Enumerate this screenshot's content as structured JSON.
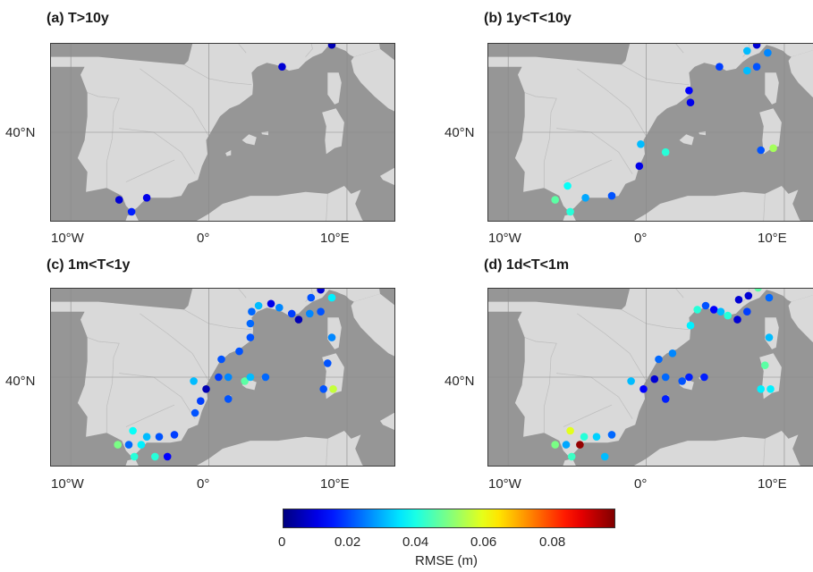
{
  "colorbar": {
    "label": "RMSE (m)",
    "ticks": [
      "0",
      "0.02",
      "0.04",
      "0.06",
      "0.08"
    ],
    "range": [
      0,
      0.097
    ],
    "colormap": "jet"
  },
  "chart_data": [
    {
      "type": "scatter",
      "map": "western-mediterranean",
      "title": "(a) T>10y",
      "x_tick_labels": [
        "10°W",
        "0°",
        "10°E"
      ],
      "y_tick_labels": [
        "40°N"
      ],
      "xlim": [
        -11.5,
        13.5
      ],
      "ylim": [
        35.5,
        44.5
      ],
      "points": [
        {
          "lon": -6.5,
          "lat": 36.6,
          "rmse": 0.008
        },
        {
          "lon": -5.6,
          "lat": 36.0,
          "rmse": 0.015
        },
        {
          "lon": -4.5,
          "lat": 36.7,
          "rmse": 0.01
        },
        {
          "lon": 5.3,
          "lat": 43.3,
          "rmse": 0.008
        },
        {
          "lon": 8.9,
          "lat": 44.4,
          "rmse": 0.005
        }
      ]
    },
    {
      "type": "scatter",
      "map": "western-mediterranean",
      "title": "(b) 1y<T<10y",
      "x_tick_labels": [
        "10°W",
        "0°",
        "10°E"
      ],
      "y_tick_labels": [
        "40°N"
      ],
      "xlim": [
        -11.5,
        13.5
      ],
      "ylim": [
        35.5,
        44.5
      ],
      "points": [
        {
          "lon": -6.6,
          "lat": 36.6,
          "rmse": 0.045
        },
        {
          "lon": -5.7,
          "lat": 37.3,
          "rmse": 0.037
        },
        {
          "lon": -5.5,
          "lat": 36.0,
          "rmse": 0.04
        },
        {
          "lon": -4.4,
          "lat": 36.7,
          "rmse": 0.028
        },
        {
          "lon": -2.5,
          "lat": 36.8,
          "rmse": 0.02
        },
        {
          "lon": -0.4,
          "lat": 39.4,
          "rmse": 0.03
        },
        {
          "lon": -0.5,
          "lat": 38.3,
          "rmse": 0.01
        },
        {
          "lon": 1.4,
          "lat": 39.0,
          "rmse": 0.04
        },
        {
          "lon": 3.1,
          "lat": 42.1,
          "rmse": 0.012
        },
        {
          "lon": 3.2,
          "lat": 41.5,
          "rmse": 0.01
        },
        {
          "lon": 5.3,
          "lat": 43.3,
          "rmse": 0.018
        },
        {
          "lon": 7.3,
          "lat": 44.1,
          "rmse": 0.03
        },
        {
          "lon": 7.3,
          "lat": 43.1,
          "rmse": 0.03
        },
        {
          "lon": 8.0,
          "lat": 44.4,
          "rmse": 0.008
        },
        {
          "lon": 8.0,
          "lat": 43.3,
          "rmse": 0.02
        },
        {
          "lon": 8.8,
          "lat": 44.0,
          "rmse": 0.025
        },
        {
          "lon": 8.3,
          "lat": 39.1,
          "rmse": 0.02
        },
        {
          "lon": 9.2,
          "lat": 39.2,
          "rmse": 0.052
        }
      ]
    },
    {
      "type": "scatter",
      "map": "western-mediterranean",
      "title": "(c) 1m<T<1y",
      "x_tick_labels": [
        "10°W",
        "0°",
        "10°E"
      ],
      "y_tick_labels": [
        "40°N"
      ],
      "xlim": [
        -11.5,
        13.5
      ],
      "ylim": [
        35.5,
        44.5
      ],
      "points": [
        {
          "lon": -6.6,
          "lat": 36.6,
          "rmse": 0.048
        },
        {
          "lon": -5.5,
          "lat": 37.3,
          "rmse": 0.037
        },
        {
          "lon": -5.8,
          "lat": 36.6,
          "rmse": 0.022
        },
        {
          "lon": -5.4,
          "lat": 36.0,
          "rmse": 0.04
        },
        {
          "lon": -4.9,
          "lat": 36.6,
          "rmse": 0.035
        },
        {
          "lon": -4.5,
          "lat": 37.0,
          "rmse": 0.03
        },
        {
          "lon": -3.9,
          "lat": 36.0,
          "rmse": 0.04
        },
        {
          "lon": -3.6,
          "lat": 37.0,
          "rmse": 0.02
        },
        {
          "lon": -2.5,
          "lat": 37.1,
          "rmse": 0.018
        },
        {
          "lon": -3.0,
          "lat": 36.0,
          "rmse": 0.012
        },
        {
          "lon": -1.0,
          "lat": 38.2,
          "rmse": 0.02
        },
        {
          "lon": -0.6,
          "lat": 38.8,
          "rmse": 0.018
        },
        {
          "lon": -1.1,
          "lat": 39.8,
          "rmse": 0.03
        },
        {
          "lon": -0.2,
          "lat": 39.4,
          "rmse": 0.005
        },
        {
          "lon": 0.7,
          "lat": 40.0,
          "rmse": 0.018
        },
        {
          "lon": 1.4,
          "lat": 40.0,
          "rmse": 0.025
        },
        {
          "lon": 1.4,
          "lat": 38.9,
          "rmse": 0.02
        },
        {
          "lon": 0.9,
          "lat": 40.9,
          "rmse": 0.02
        },
        {
          "lon": 2.2,
          "lat": 41.3,
          "rmse": 0.02
        },
        {
          "lon": 2.6,
          "lat": 39.8,
          "rmse": 0.045
        },
        {
          "lon": 3.0,
          "lat": 40.0,
          "rmse": 0.03
        },
        {
          "lon": 4.1,
          "lat": 40.0,
          "rmse": 0.022
        },
        {
          "lon": 3.0,
          "lat": 42.0,
          "rmse": 0.02
        },
        {
          "lon": 3.0,
          "lat": 42.7,
          "rmse": 0.022
        },
        {
          "lon": 3.1,
          "lat": 43.3,
          "rmse": 0.022
        },
        {
          "lon": 3.6,
          "lat": 43.6,
          "rmse": 0.03
        },
        {
          "lon": 4.5,
          "lat": 43.7,
          "rmse": 0.01
        },
        {
          "lon": 5.1,
          "lat": 43.5,
          "rmse": 0.025
        },
        {
          "lon": 6.0,
          "lat": 43.2,
          "rmse": 0.018
        },
        {
          "lon": 6.5,
          "lat": 42.9,
          "rmse": 0.005
        },
        {
          "lon": 7.4,
          "lat": 44.0,
          "rmse": 0.02
        },
        {
          "lon": 7.3,
          "lat": 43.2,
          "rmse": 0.025
        },
        {
          "lon": 8.1,
          "lat": 44.4,
          "rmse": 0.008
        },
        {
          "lon": 8.1,
          "lat": 43.3,
          "rmse": 0.02
        },
        {
          "lon": 8.9,
          "lat": 44.0,
          "rmse": 0.035
        },
        {
          "lon": 8.9,
          "lat": 42.0,
          "rmse": 0.025
        },
        {
          "lon": 8.6,
          "lat": 40.7,
          "rmse": 0.02
        },
        {
          "lon": 8.3,
          "lat": 39.4,
          "rmse": 0.02
        },
        {
          "lon": 9.0,
          "lat": 39.4,
          "rmse": 0.055
        }
      ]
    },
    {
      "type": "scatter",
      "map": "western-mediterranean",
      "title": "(d) 1d<T<1m",
      "x_tick_labels": [
        "10°W",
        "0°",
        "10°E"
      ],
      "y_tick_labels": [
        "40°N"
      ],
      "xlim": [
        -11.5,
        13.5
      ],
      "ylim": [
        35.5,
        44.5
      ],
      "points": [
        {
          "lon": -6.6,
          "lat": 36.6,
          "rmse": 0.048
        },
        {
          "lon": -5.5,
          "lat": 37.3,
          "rmse": 0.058
        },
        {
          "lon": -5.8,
          "lat": 36.6,
          "rmse": 0.028
        },
        {
          "lon": -5.4,
          "lat": 36.0,
          "rmse": 0.042
        },
        {
          "lon": -4.8,
          "lat": 36.6,
          "rmse": 0.095
        },
        {
          "lon": -4.5,
          "lat": 37.0,
          "rmse": 0.04
        },
        {
          "lon": -3.6,
          "lat": 37.0,
          "rmse": 0.032
        },
        {
          "lon": -2.5,
          "lat": 37.1,
          "rmse": 0.022
        },
        {
          "lon": -3.0,
          "lat": 36.0,
          "rmse": 0.03
        },
        {
          "lon": -1.1,
          "lat": 39.8,
          "rmse": 0.03
        },
        {
          "lon": -0.2,
          "lat": 39.4,
          "rmse": 0.012
        },
        {
          "lon": 0.6,
          "lat": 39.9,
          "rmse": 0.008
        },
        {
          "lon": 1.4,
          "lat": 40.0,
          "rmse": 0.022
        },
        {
          "lon": 1.4,
          "lat": 38.9,
          "rmse": 0.015
        },
        {
          "lon": 0.9,
          "lat": 40.9,
          "rmse": 0.022
        },
        {
          "lon": 2.6,
          "lat": 39.8,
          "rmse": 0.02
        },
        {
          "lon": 3.1,
          "lat": 40.0,
          "rmse": 0.015
        },
        {
          "lon": 4.2,
          "lat": 40.0,
          "rmse": 0.015
        },
        {
          "lon": 1.9,
          "lat": 41.2,
          "rmse": 0.025
        },
        {
          "lon": 3.2,
          "lat": 42.6,
          "rmse": 0.035
        },
        {
          "lon": 3.7,
          "lat": 43.4,
          "rmse": 0.04
        },
        {
          "lon": 4.3,
          "lat": 43.6,
          "rmse": 0.02
        },
        {
          "lon": 4.9,
          "lat": 43.4,
          "rmse": 0.012
        },
        {
          "lon": 5.4,
          "lat": 43.3,
          "rmse": 0.03
        },
        {
          "lon": 5.9,
          "lat": 43.1,
          "rmse": 0.04
        },
        {
          "lon": 6.7,
          "lat": 43.9,
          "rmse": 0.008
        },
        {
          "lon": 6.6,
          "lat": 42.9,
          "rmse": 0.008
        },
        {
          "lon": 7.4,
          "lat": 44.1,
          "rmse": 0.008
        },
        {
          "lon": 7.3,
          "lat": 43.3,
          "rmse": 0.018
        },
        {
          "lon": 8.1,
          "lat": 44.5,
          "rmse": 0.045
        },
        {
          "lon": 8.9,
          "lat": 44.0,
          "rmse": 0.022
        },
        {
          "lon": 8.9,
          "lat": 42.0,
          "rmse": 0.03
        },
        {
          "lon": 8.6,
          "lat": 40.6,
          "rmse": 0.045
        },
        {
          "lon": 8.3,
          "lat": 39.4,
          "rmse": 0.035
        },
        {
          "lon": 9.0,
          "lat": 39.4,
          "rmse": 0.035
        }
      ]
    }
  ]
}
